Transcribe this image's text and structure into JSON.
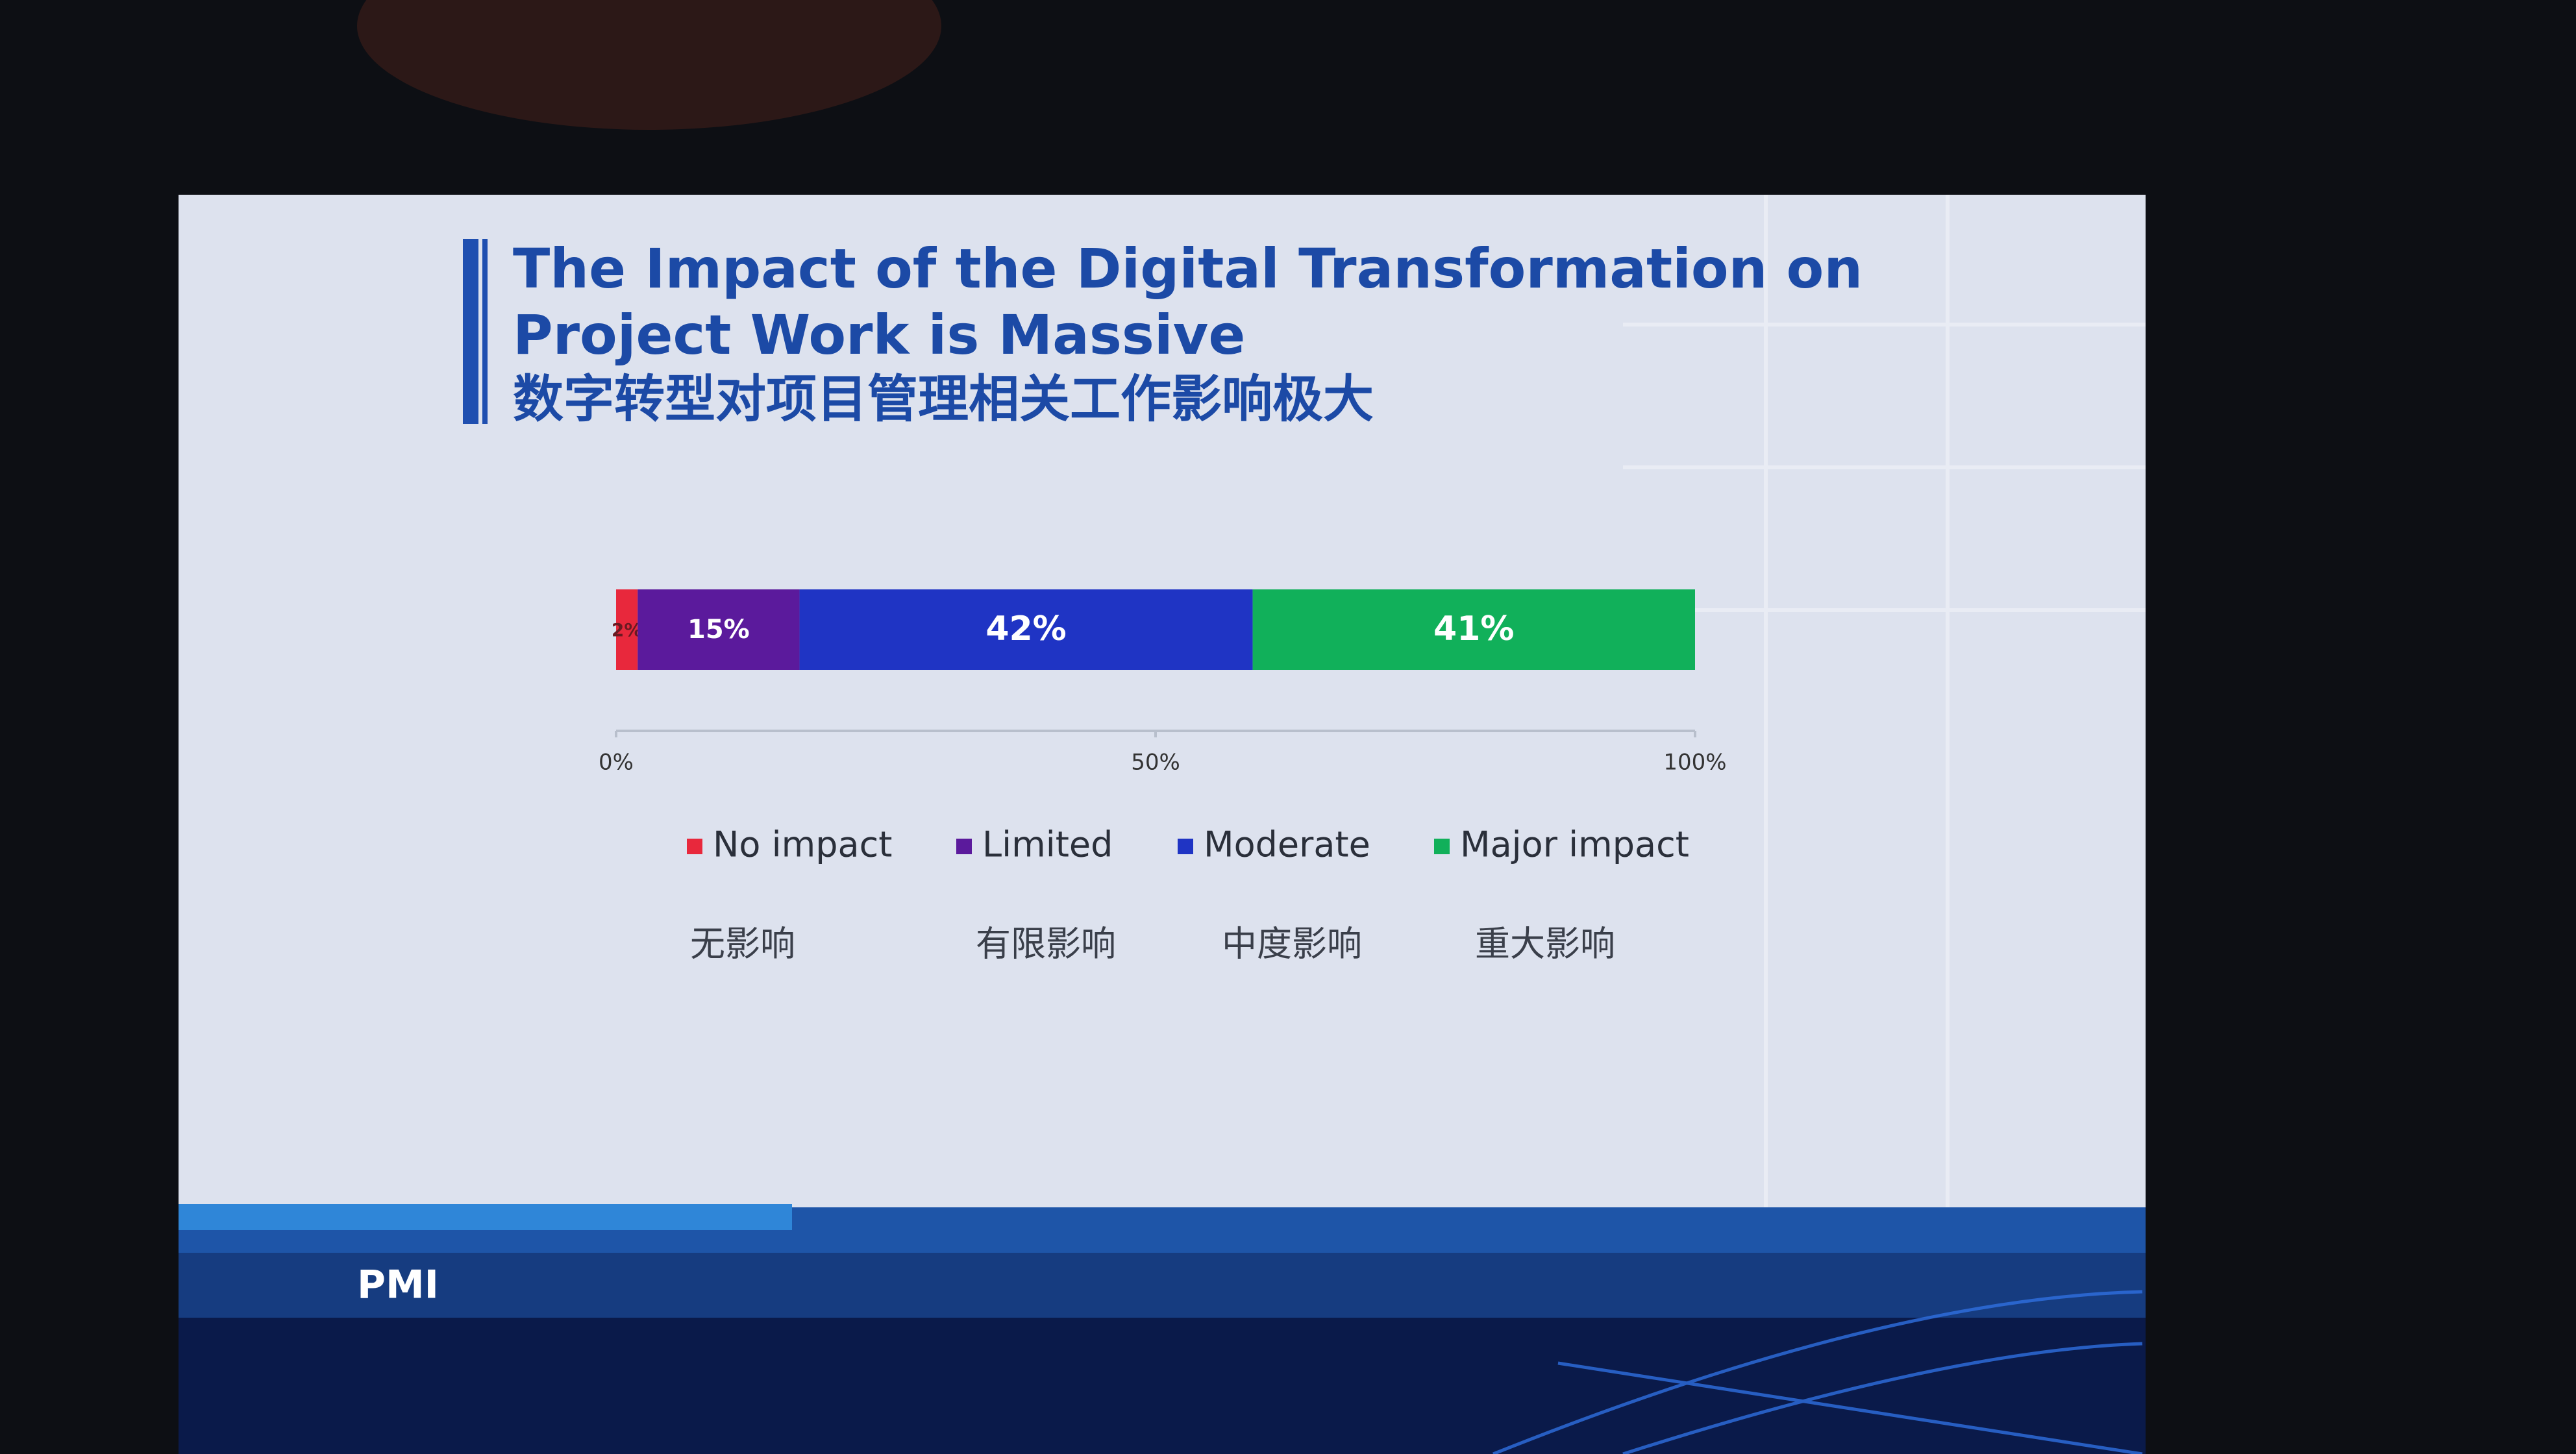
{
  "chart_data": {
    "type": "stacked-bar-horizontal",
    "title": "The Impact of the Digital Transformation on Project Work is Massive",
    "subtitle": "数字转型对项目管理相关工作影响极大",
    "categories": [
      null
    ],
    "series": [
      {
        "name": "No impact",
        "name_cn": "无影响",
        "color": "#e8283c",
        "values": [
          2
        ],
        "value_labels": [
          "2%"
        ]
      },
      {
        "name": "Limited",
        "name_cn": "有限影响",
        "color": "#5b1a9c",
        "values": [
          15
        ],
        "value_labels": [
          "15%"
        ]
      },
      {
        "name": "Moderate",
        "name_cn": "中度影响",
        "color": "#1f34c4",
        "values": [
          42
        ],
        "value_labels": [
          "42%"
        ]
      },
      {
        "name": "Major impact",
        "name_cn": "重大影响",
        "color": "#11b05a",
        "values": [
          41
        ],
        "value_labels": [
          "41%"
        ]
      }
    ],
    "xlim": [
      0,
      100
    ],
    "xticks": [
      {
        "value": 0,
        "label": "0%"
      },
      {
        "value": 50,
        "label": "50%"
      },
      {
        "value": 100,
        "label": "100%"
      }
    ],
    "legend": "bottom"
  },
  "logo": "PMI"
}
